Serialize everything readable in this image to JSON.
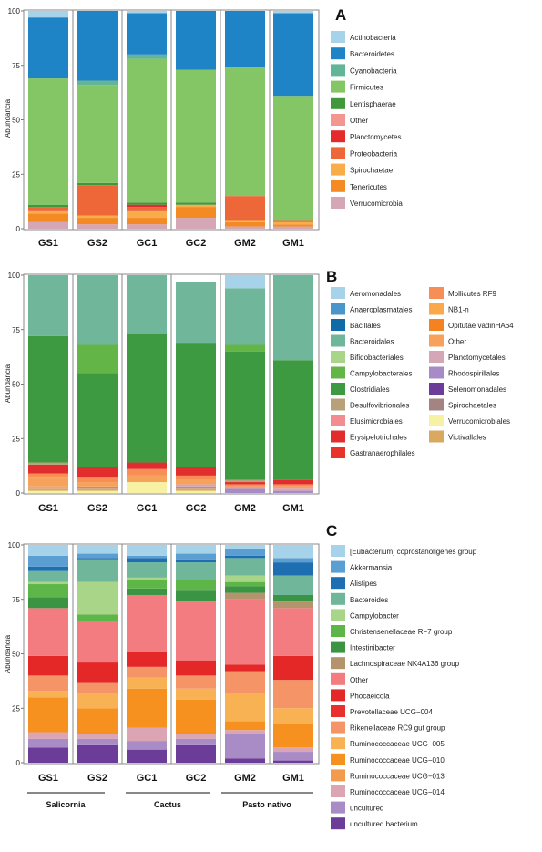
{
  "chart_data": [
    {
      "type": "bar",
      "stacked": true,
      "panel_label": "A",
      "ylabel": "Abundancia",
      "ylim": [
        0,
        100
      ],
      "yticks": [
        0,
        25,
        50,
        75,
        100
      ],
      "categories": [
        "GS1",
        "GS2",
        "GC1",
        "GC2",
        "GM2",
        "GM1"
      ],
      "series": [
        {
          "name": "Verrucomicrobia",
          "color": "#d5a6b6",
          "values": [
            3,
            2,
            2,
            5,
            1,
            1
          ]
        },
        {
          "name": "Tenericutes",
          "color": "#f38a24",
          "values": [
            4,
            3,
            3,
            5,
            2,
            1
          ]
        },
        {
          "name": "Spirochaetae",
          "color": "#f9ac4a",
          "values": [
            1,
            1,
            3,
            1,
            1,
            1
          ]
        },
        {
          "name": "Proteobacteria",
          "color": "#ee6739",
          "values": [
            2,
            14,
            2,
            0,
            11,
            1
          ]
        },
        {
          "name": "Planctomycetes",
          "color": "#e42a2a",
          "values": [
            0,
            0,
            1,
            0,
            0,
            0
          ]
        },
        {
          "name": "Other",
          "color": "#f3968f",
          "values": [
            0,
            0,
            0,
            0,
            0,
            0
          ]
        },
        {
          "name": "Lentisphaerae",
          "color": "#41983a",
          "values": [
            1,
            1,
            1,
            1,
            0,
            0
          ]
        },
        {
          "name": "Firmicutes",
          "color": "#84c566",
          "values": [
            58,
            45,
            66,
            61,
            59,
            57
          ]
        },
        {
          "name": "Cyanobacteria",
          "color": "#63b597",
          "values": [
            0,
            2,
            2,
            0,
            0,
            0
          ]
        },
        {
          "name": "Bacteroidetes",
          "color": "#1f84c6",
          "values": [
            28,
            32,
            19,
            27,
            26,
            38
          ]
        },
        {
          "name": "Actinobacteria",
          "color": "#a6d3ea",
          "values": [
            3,
            0,
            1,
            0,
            0,
            1
          ]
        }
      ],
      "legend": {
        "placement": "right",
        "entries": [
          "Actinobacteria",
          "Bacteroidetes",
          "Cyanobacteria",
          "Firmicutes",
          "Lentisphaerae",
          "Other",
          "Planctomycetes",
          "Proteobacteria",
          "Spirochaetae",
          "Tenericutes",
          "Verrucomicrobia"
        ]
      }
    },
    {
      "type": "bar",
      "stacked": true,
      "panel_label": "B",
      "ylabel": "Abundancia",
      "ylim": [
        0,
        100
      ],
      "yticks": [
        0,
        25,
        50,
        75,
        100
      ],
      "categories": [
        "GS1",
        "GS2",
        "GC1",
        "GC2",
        "GM2",
        "GM1"
      ],
      "series": [
        {
          "name": "Verrucomicrobiales",
          "color": "#f6f1a3",
          "values": [
            1,
            1,
            5,
            1,
            0,
            0
          ]
        },
        {
          "name": "Victivallales",
          "color": "#d8a95e",
          "values": [
            1,
            1,
            0,
            1,
            0,
            0
          ]
        },
        {
          "name": "Rhodospirillales",
          "color": "#a78bc7",
          "values": [
            0,
            1,
            0,
            1,
            2,
            1
          ]
        },
        {
          "name": "Planctomycetales",
          "color": "#d5a6b6",
          "values": [
            1,
            0,
            0,
            1,
            0,
            1
          ]
        },
        {
          "name": "Opitutae vadinHA64",
          "color": "#f7a25a",
          "values": [
            4,
            2,
            3,
            2,
            1,
            1
          ]
        },
        {
          "name": "Mollicutes RF9",
          "color": "#f68e56",
          "values": [
            2,
            2,
            3,
            2,
            1,
            1
          ]
        },
        {
          "name": "Erysipelotrichales",
          "color": "#e12d2d",
          "values": [
            4,
            5,
            3,
            4,
            1,
            2
          ]
        },
        {
          "name": "Desulfovibrionales",
          "color": "#b8a07a",
          "values": [
            1,
            0,
            0,
            0,
            1,
            0
          ]
        },
        {
          "name": "Clostridiales",
          "color": "#3e9a40",
          "values": [
            58,
            43,
            59,
            57,
            59,
            55
          ]
        },
        {
          "name": "Campylobacterales",
          "color": "#63b547",
          "values": [
            0,
            13,
            0,
            0,
            3,
            0
          ]
        },
        {
          "name": "Bacteroidales",
          "color": "#6fb69b",
          "values": [
            28,
            32,
            27,
            28,
            26,
            39
          ]
        },
        {
          "name": "Aeromonadales",
          "color": "#a6d3ea",
          "values": [
            0,
            0,
            0,
            0,
            6,
            0
          ]
        }
      ],
      "legend": {
        "placement": "right",
        "entries": [
          "Aeromonadales",
          "Anaeroplasmatales",
          "Bacillales",
          "Bacteroidales",
          "Bifidobacteriales",
          "Campylobacterales",
          "Clostridiales",
          "Desulfovibrionales",
          "Elusimicrobiales",
          "Erysipelotrichales",
          "Gastranaerophilales",
          "Mollicutes RF9",
          "NB1-n",
          "Opitutae vadinHA64",
          "Other",
          "Planctomycetales",
          "Rhodospirillales",
          "Selenomonadales",
          "Spirochaetales",
          "Verrucomicrobiales",
          "Victivallales"
        ]
      }
    },
    {
      "type": "bar",
      "stacked": true,
      "panel_label": "C",
      "ylabel": "Abundancia",
      "ylim": [
        0,
        100
      ],
      "yticks": [
        0,
        25,
        50,
        75,
        100
      ],
      "categories": [
        "GS1",
        "GS2",
        "GC1",
        "GC2",
        "GM2",
        "GM1"
      ],
      "series": [
        {
          "name": "uncultured bacterium",
          "color": "#6b3d98",
          "values": [
            7,
            8,
            6,
            8,
            2,
            1
          ]
        },
        {
          "name": "uncultured",
          "color": "#a98bc6",
          "values": [
            4,
            3,
            4,
            3,
            11,
            4
          ]
        },
        {
          "name": "Ruminococcaceae UCG-014",
          "color": "#dba5b3",
          "values": [
            3,
            2,
            6,
            2,
            2,
            2
          ]
        },
        {
          "name": "Ruminococcaceae UCG-010",
          "color": "#f6901e",
          "values": [
            16,
            12,
            18,
            16,
            4,
            11
          ]
        },
        {
          "name": "Ruminococcaceae UCG-005",
          "color": "#f8b153",
          "values": [
            3,
            7,
            5,
            5,
            13,
            7
          ]
        },
        {
          "name": "Rikenellaceae RC9 gut group",
          "color": "#f59567",
          "values": [
            7,
            5,
            5,
            6,
            10,
            13
          ]
        },
        {
          "name": "Phocaeicola",
          "color": "#e42727",
          "values": [
            9,
            9,
            7,
            7,
            3,
            11
          ]
        },
        {
          "name": "Other",
          "color": "#f27c7f",
          "values": [
            22,
            19,
            26,
            27,
            30,
            22
          ]
        },
        {
          "name": "Lachnospiraceae NK4A136 group",
          "color": "#b4946c",
          "values": [
            0,
            0,
            0,
            0,
            3,
            3
          ]
        },
        {
          "name": "Intestinibacter",
          "color": "#3b9443",
          "values": [
            5,
            0,
            3,
            5,
            3,
            3
          ]
        },
        {
          "name": "Christensenellaceae R-7 group",
          "color": "#5fb648",
          "values": [
            6,
            3,
            4,
            5,
            2,
            0
          ]
        },
        {
          "name": "Campylobacter",
          "color": "#a8d588",
          "values": [
            1,
            15,
            1,
            0,
            3,
            0
          ]
        },
        {
          "name": "Bacteroides",
          "color": "#6fb69b",
          "values": [
            5,
            10,
            7,
            8,
            8,
            9
          ]
        },
        {
          "name": "Alistipes",
          "color": "#1e6fb1",
          "values": [
            2,
            1,
            2,
            1,
            1,
            6
          ]
        },
        {
          "name": "Akkermansia",
          "color": "#5b9ed2",
          "values": [
            5,
            2,
            1,
            3,
            3,
            2
          ]
        },
        {
          "name": "[Eubacterium] coprostanoligenes group",
          "color": "#a6d3ea",
          "values": [
            5,
            4,
            5,
            4,
            2,
            6
          ]
        }
      ],
      "legend": {
        "placement": "right",
        "entries": [
          "[Eubacterium] coprostanoligenes group",
          "Akkermansia",
          "Alistipes",
          "Bacteroides",
          "Campylobacter",
          "Christensenellaceae R−7 group",
          "Intestinibacter",
          "Lachnospiraceae NK4A136 group",
          "Other",
          "Phocaeicola",
          "Prevotellaceae UCG−004",
          "Rikenellaceae RC9 gut group",
          "Ruminococcaceae UCG−005",
          "Ruminococcaceae UCG−010",
          "Ruminococcaceae UCG−013",
          "Ruminococcaceae UCG−014",
          "uncultured",
          "uncultured bacterium"
        ]
      },
      "group_labels": [
        "Salicornia",
        "Cactus",
        "Pasto nativo"
      ]
    }
  ],
  "legend_colors": {
    "A": [
      "#a6d3ea",
      "#1f84c6",
      "#63b597",
      "#84c566",
      "#41983a",
      "#f3968f",
      "#e42a2a",
      "#ee6739",
      "#f9ac4a",
      "#f38a24",
      "#d5a6b6"
    ],
    "B": [
      "#a6d3ea",
      "#4a95c9",
      "#0f6aa8",
      "#6fb69b",
      "#a8d588",
      "#63b547",
      "#3e9a40",
      "#b8a07a",
      "#f28c91",
      "#e12d2d",
      "#e8332a",
      "#f68e56",
      "#f9a94c",
      "#f58220",
      "#f7a25a",
      "#d5a6b6",
      "#a78bc7",
      "#6b3d98",
      "#a38483",
      "#f6f1a3",
      "#d8a95e"
    ],
    "C": [
      "#a6d3ea",
      "#5b9ed2",
      "#1e6fb1",
      "#6fb69b",
      "#a8d588",
      "#5fb648",
      "#3b9443",
      "#b4946c",
      "#f27c7f",
      "#e42727",
      "#e8312e",
      "#f59567",
      "#f8b153",
      "#f6901e",
      "#f39a4c",
      "#dba5b3",
      "#a98bc6",
      "#6b3d98"
    ]
  }
}
